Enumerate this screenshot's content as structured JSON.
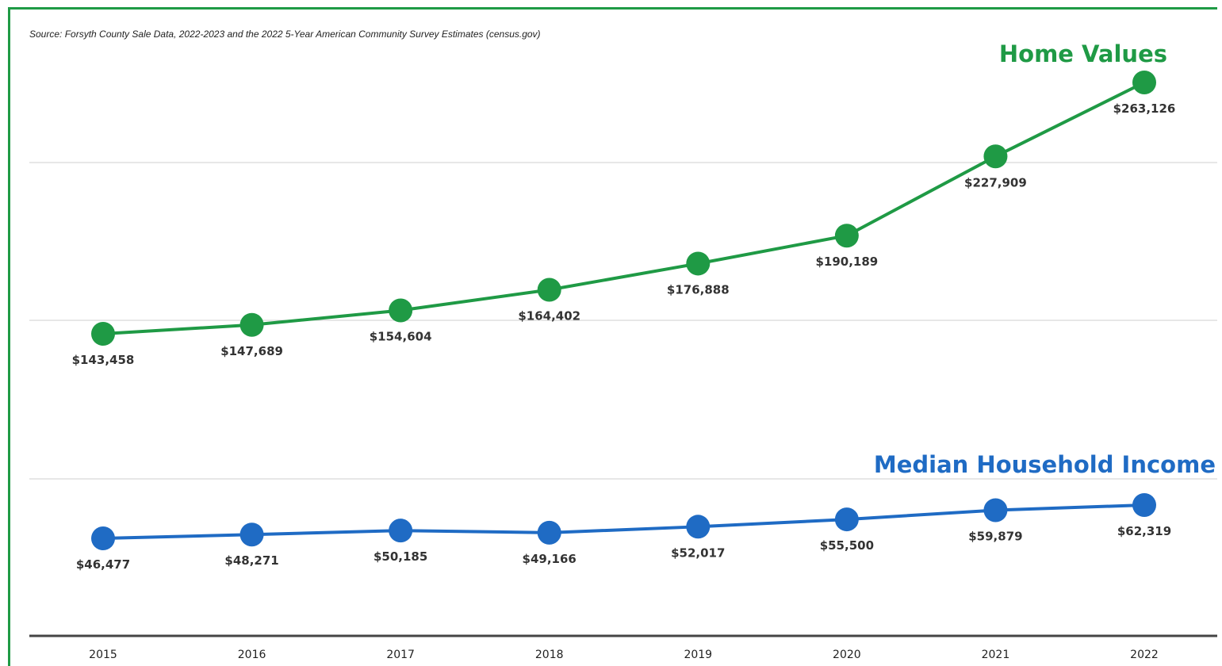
{
  "source_note": "Source: Forsyth County Sale Data, 2022-2023 and the 2022 5-Year American Community Survey Estimates (census.gov)",
  "chart_data": {
    "type": "line",
    "x": [
      "2015",
      "2016",
      "2017",
      "2018",
      "2019",
      "2020",
      "2021",
      "2022"
    ],
    "grid": true,
    "series": [
      {
        "name": "Home Values",
        "color": "#1f9a45",
        "values": [
          143458,
          147689,
          154604,
          164402,
          176888,
          190189,
          227909,
          263126
        ],
        "labels": [
          "$143,458",
          "$147,689",
          "$154,604",
          "$164,402",
          "$176,888",
          "$190,189",
          "$227,909",
          "$263,126"
        ]
      },
      {
        "name": "Median Household Income",
        "color": "#1f6bc4",
        "values": [
          46477,
          48271,
          50185,
          49166,
          52017,
          55500,
          59879,
          62319
        ],
        "labels": [
          "$46,477",
          "$48,271",
          "$50,185",
          "$49,166",
          "$52,017",
          "$55,500",
          "$59,879",
          "$62,319"
        ]
      }
    ]
  }
}
